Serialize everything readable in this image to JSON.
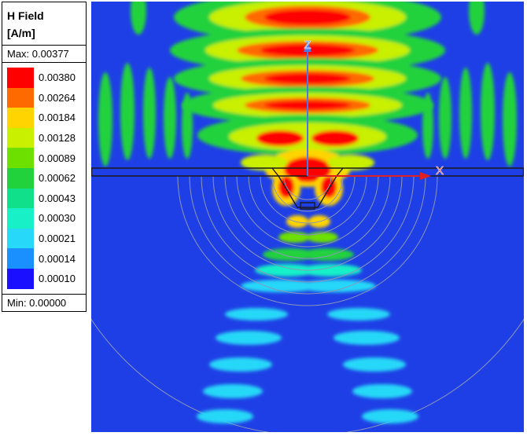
{
  "legend": {
    "title_line1": "H Field",
    "title_line2": "[A/m]",
    "max_label": "Max: 0.00377",
    "min_label": "Min: 0.00000",
    "scale": [
      {
        "value": "0.00380",
        "color": "#ff0000"
      },
      {
        "value": "0.00264",
        "color": "#ff6a00"
      },
      {
        "value": "0.00184",
        "color": "#ffd400"
      },
      {
        "value": "0.00128",
        "color": "#c8f000"
      },
      {
        "value": "0.00089",
        "color": "#6ee000"
      },
      {
        "value": "0.00062",
        "color": "#22d23c"
      },
      {
        "value": "0.00043",
        "color": "#10e08a"
      },
      {
        "value": "0.00030",
        "color": "#18f0c8"
      },
      {
        "value": "0.00021",
        "color": "#28d8f8"
      },
      {
        "value": "0.00014",
        "color": "#1a90ff"
      },
      {
        "value": "0.00010",
        "color": "#1a10ff"
      }
    ]
  },
  "axes": {
    "z_label": "Z",
    "x_label": "X",
    "z_color": "#4a78e8",
    "x_color": "#e02020"
  },
  "plot": {
    "background_color": "#1f3fe6"
  }
}
